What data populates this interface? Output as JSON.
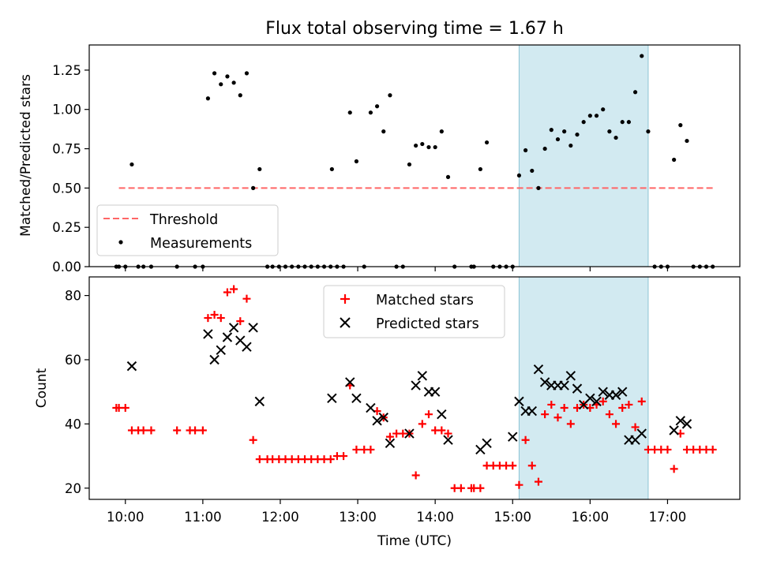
{
  "figure": {
    "title": "Flux total observing time = 1.67 h",
    "xlabel": "Time (UTC)",
    "highlight_span": [
      "15:05",
      "16:45"
    ],
    "highlight_color": "#add8e6",
    "x_ticks": [
      "10:00",
      "11:00",
      "12:00",
      "13:00",
      "14:00",
      "15:00",
      "16:00",
      "17:00"
    ],
    "xlim": [
      "09:32",
      "17:56"
    ]
  },
  "chart_data": [
    {
      "type": "scatter",
      "ylabel": "Matched/Predicted stars",
      "ylim": [
        0,
        1.41
      ],
      "y_ticks": [
        "0.00",
        "0.25",
        "0.50",
        "0.75",
        "1.00",
        "1.25"
      ],
      "legend": {
        "placement": "lower-left",
        "entries": [
          "Threshold",
          "Measurements"
        ]
      },
      "threshold": {
        "name": "Threshold",
        "value": 0.5,
        "x_range": [
          "09:55",
          "17:35"
        ],
        "color": "#ff6666",
        "style": "dashed"
      },
      "series": [
        {
          "name": "Measurements",
          "color": "#000000",
          "points": [
            [
              "09:53",
              0
            ],
            [
              "09:55",
              0
            ],
            [
              "10:00",
              0
            ],
            [
              "10:05",
              0.65
            ],
            [
              "10:10",
              0
            ],
            [
              "10:14",
              0
            ],
            [
              "10:20",
              0
            ],
            [
              "10:40",
              0
            ],
            [
              "10:54",
              0
            ],
            [
              "11:00",
              0
            ],
            [
              "11:04",
              1.07
            ],
            [
              "11:09",
              1.23
            ],
            [
              "11:14",
              1.16
            ],
            [
              "11:19",
              1.21
            ],
            [
              "11:24",
              1.17
            ],
            [
              "11:29",
              1.09
            ],
            [
              "11:34",
              1.23
            ],
            [
              "11:39",
              0.5
            ],
            [
              "11:44",
              0.62
            ],
            [
              "11:50",
              0
            ],
            [
              "11:54",
              0
            ],
            [
              "11:59",
              0
            ],
            [
              "12:04",
              0
            ],
            [
              "12:09",
              0
            ],
            [
              "12:14",
              0
            ],
            [
              "12:19",
              0
            ],
            [
              "12:24",
              0
            ],
            [
              "12:29",
              0
            ],
            [
              "12:34",
              0
            ],
            [
              "12:39",
              0
            ],
            [
              "12:44",
              0
            ],
            [
              "12:40",
              0.62
            ],
            [
              "12:49",
              0
            ],
            [
              "12:54",
              0.98
            ],
            [
              "12:59",
              0.67
            ],
            [
              "13:05",
              0
            ],
            [
              "13:10",
              0.98
            ],
            [
              "13:15",
              1.02
            ],
            [
              "13:20",
              0.86
            ],
            [
              "13:25",
              1.09
            ],
            [
              "13:30",
              0
            ],
            [
              "13:35",
              0
            ],
            [
              "13:40",
              0.65
            ],
            [
              "13:45",
              0.77
            ],
            [
              "13:50",
              0.78
            ],
            [
              "13:55",
              0.76
            ],
            [
              "14:00",
              0.76
            ],
            [
              "14:05",
              0.86
            ],
            [
              "14:10",
              0.57
            ],
            [
              "14:15",
              0
            ],
            [
              "14:28",
              0
            ],
            [
              "14:30",
              0
            ],
            [
              "14:35",
              0.62
            ],
            [
              "14:40",
              0.79
            ],
            [
              "14:45",
              0
            ],
            [
              "14:50",
              0
            ],
            [
              "14:55",
              0
            ],
            [
              "15:00",
              0
            ],
            [
              "15:05",
              0.58
            ],
            [
              "15:10",
              0.74
            ],
            [
              "15:15",
              0.61
            ],
            [
              "15:20",
              0.5
            ],
            [
              "15:25",
              0.75
            ],
            [
              "15:30",
              0.87
            ],
            [
              "15:35",
              0.81
            ],
            [
              "15:40",
              0.86
            ],
            [
              "15:45",
              0.77
            ],
            [
              "15:50",
              0.84
            ],
            [
              "15:55",
              0.92
            ],
            [
              "16:00",
              0.96
            ],
            [
              "16:05",
              0.96
            ],
            [
              "16:10",
              1.0
            ],
            [
              "16:15",
              0.86
            ],
            [
              "16:20",
              0.82
            ],
            [
              "16:25",
              0.92
            ],
            [
              "16:30",
              0.92
            ],
            [
              "16:35",
              1.11
            ],
            [
              "16:40",
              1.34
            ],
            [
              "16:45",
              0.86
            ],
            [
              "16:50",
              0
            ],
            [
              "16:55",
              0
            ],
            [
              "17:00",
              0
            ],
            [
              "17:05",
              0.68
            ],
            [
              "17:10",
              0.9
            ],
            [
              "17:15",
              0.8
            ],
            [
              "17:20",
              0
            ],
            [
              "17:25",
              0
            ],
            [
              "17:30",
              0
            ],
            [
              "17:35",
              0
            ]
          ]
        }
      ]
    },
    {
      "type": "scatter",
      "ylabel": "Count",
      "ylim": [
        16.5,
        85.8
      ],
      "y_ticks": [
        "20",
        "40",
        "60",
        "80"
      ],
      "legend": {
        "placement": "top-center",
        "entries": [
          "Matched stars",
          "Predicted stars"
        ]
      },
      "series": [
        {
          "name": "Matched stars",
          "color": "#ff0000",
          "marker": "plus",
          "points": [
            [
              "09:53",
              45
            ],
            [
              "09:55",
              45
            ],
            [
              "10:00",
              45
            ],
            [
              "10:05",
              38
            ],
            [
              "10:10",
              38
            ],
            [
              "10:14",
              38
            ],
            [
              "10:20",
              38
            ],
            [
              "10:40",
              38
            ],
            [
              "10:50",
              38
            ],
            [
              "10:54",
              38
            ],
            [
              "11:00",
              38
            ],
            [
              "11:04",
              73
            ],
            [
              "11:09",
              74
            ],
            [
              "11:14",
              73
            ],
            [
              "11:19",
              81
            ],
            [
              "11:24",
              82
            ],
            [
              "11:29",
              72
            ],
            [
              "11:34",
              79
            ],
            [
              "11:39",
              35
            ],
            [
              "11:44",
              29
            ],
            [
              "11:50",
              29
            ],
            [
              "11:54",
              29
            ],
            [
              "11:59",
              29
            ],
            [
              "12:04",
              29
            ],
            [
              "12:09",
              29
            ],
            [
              "12:14",
              29
            ],
            [
              "12:19",
              29
            ],
            [
              "12:24",
              29
            ],
            [
              "12:29",
              29
            ],
            [
              "12:34",
              29
            ],
            [
              "12:39",
              29
            ],
            [
              "12:44",
              30
            ],
            [
              "12:49",
              30
            ],
            [
              "12:54",
              52
            ],
            [
              "12:59",
              32
            ],
            [
              "13:05",
              32
            ],
            [
              "13:10",
              32
            ],
            [
              "13:15",
              44
            ],
            [
              "13:20",
              42
            ],
            [
              "13:25",
              36
            ],
            [
              "13:30",
              37
            ],
            [
              "13:35",
              37
            ],
            [
              "13:40",
              37
            ],
            [
              "13:45",
              24
            ],
            [
              "13:50",
              40
            ],
            [
              "13:55",
              43
            ],
            [
              "14:00",
              38
            ],
            [
              "14:05",
              38
            ],
            [
              "14:10",
              37
            ],
            [
              "14:15",
              20
            ],
            [
              "14:20",
              20
            ],
            [
              "14:28",
              20
            ],
            [
              "14:30",
              20
            ],
            [
              "14:35",
              20
            ],
            [
              "14:40",
              27
            ],
            [
              "14:45",
              27
            ],
            [
              "14:50",
              27
            ],
            [
              "14:55",
              27
            ],
            [
              "15:00",
              27
            ],
            [
              "15:05",
              21
            ],
            [
              "15:10",
              35
            ],
            [
              "15:15",
              27
            ],
            [
              "15:20",
              22
            ],
            [
              "15:25",
              43
            ],
            [
              "15:30",
              46
            ],
            [
              "15:35",
              42
            ],
            [
              "15:40",
              45
            ],
            [
              "15:45",
              40
            ],
            [
              "15:50",
              45
            ],
            [
              "15:55",
              46
            ],
            [
              "16:00",
              45
            ],
            [
              "16:05",
              46
            ],
            [
              "16:10",
              47
            ],
            [
              "16:15",
              43
            ],
            [
              "16:20",
              40
            ],
            [
              "16:25",
              45
            ],
            [
              "16:30",
              46
            ],
            [
              "16:35",
              39
            ],
            [
              "16:40",
              47
            ],
            [
              "16:45",
              32
            ],
            [
              "16:50",
              32
            ],
            [
              "16:55",
              32
            ],
            [
              "17:00",
              32
            ],
            [
              "17:05",
              26
            ],
            [
              "17:10",
              37
            ],
            [
              "17:15",
              32
            ],
            [
              "17:20",
              32
            ],
            [
              "17:25",
              32
            ],
            [
              "17:30",
              32
            ],
            [
              "17:35",
              32
            ]
          ]
        },
        {
          "name": "Predicted stars",
          "color": "#000000",
          "marker": "x",
          "points": [
            [
              "10:05",
              58
            ],
            [
              "11:04",
              68
            ],
            [
              "11:09",
              60
            ],
            [
              "11:14",
              63
            ],
            [
              "11:19",
              67
            ],
            [
              "11:24",
              70
            ],
            [
              "11:29",
              66
            ],
            [
              "11:34",
              64
            ],
            [
              "11:39",
              70
            ],
            [
              "11:44",
              47
            ],
            [
              "12:40",
              48
            ],
            [
              "12:54",
              53
            ],
            [
              "12:59",
              48
            ],
            [
              "13:10",
              45
            ],
            [
              "13:15",
              41
            ],
            [
              "13:20",
              42
            ],
            [
              "13:25",
              34
            ],
            [
              "13:40",
              37
            ],
            [
              "13:45",
              52
            ],
            [
              "13:50",
              55
            ],
            [
              "13:55",
              50
            ],
            [
              "14:00",
              50
            ],
            [
              "14:05",
              43
            ],
            [
              "14:10",
              35
            ],
            [
              "14:35",
              32
            ],
            [
              "14:40",
              34
            ],
            [
              "15:00",
              36
            ],
            [
              "15:05",
              47
            ],
            [
              "15:10",
              44
            ],
            [
              "15:15",
              44
            ],
            [
              "15:20",
              57
            ],
            [
              "15:25",
              53
            ],
            [
              "15:30",
              52
            ],
            [
              "15:35",
              52
            ],
            [
              "15:40",
              52
            ],
            [
              "15:45",
              55
            ],
            [
              "15:50",
              51
            ],
            [
              "15:55",
              46
            ],
            [
              "16:00",
              48
            ],
            [
              "16:05",
              47
            ],
            [
              "16:10",
              50
            ],
            [
              "16:15",
              49
            ],
            [
              "16:20",
              49
            ],
            [
              "16:25",
              50
            ],
            [
              "16:30",
              35
            ],
            [
              "16:35",
              35
            ],
            [
              "16:40",
              37
            ],
            [
              "17:05",
              38
            ],
            [
              "17:10",
              41
            ],
            [
              "17:15",
              40
            ]
          ]
        }
      ]
    }
  ]
}
